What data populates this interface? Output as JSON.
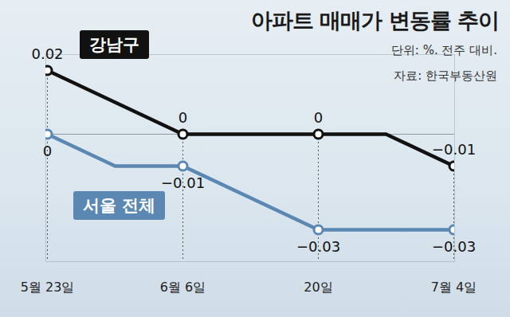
{
  "chart_data": {
    "type": "line",
    "title": "아파트 매매가 변동률 추이",
    "subtitle": "단위: %. 전주 대비.",
    "caption": "자료: 한국부동산원",
    "categories": [
      "5월 23일",
      null,
      "6월 6일",
      null,
      "20일",
      null,
      "7월 4일"
    ],
    "series": [
      {
        "name": "강남구",
        "color": "#111111",
        "marker": "circle",
        "values": [
          0.02,
          0.01,
          0,
          0,
          0,
          0,
          -0.01
        ],
        "value_labels": [
          "0.02",
          null,
          "0",
          null,
          "0",
          null,
          "−0.01"
        ]
      },
      {
        "name": "서울 전체",
        "color": "#5b87b3",
        "marker": "circle",
        "values": [
          0,
          -0.01,
          -0.01,
          -0.02,
          -0.03,
          -0.03,
          -0.03
        ],
        "value_labels": [
          "0",
          null,
          "−0.01",
          null,
          "−0.03",
          null,
          "−0.03"
        ]
      }
    ],
    "ylim": [
      -0.04,
      0.025
    ],
    "yticks": [
      0
    ],
    "grid": true,
    "data_labels": true,
    "tick_labels": "x"
  }
}
